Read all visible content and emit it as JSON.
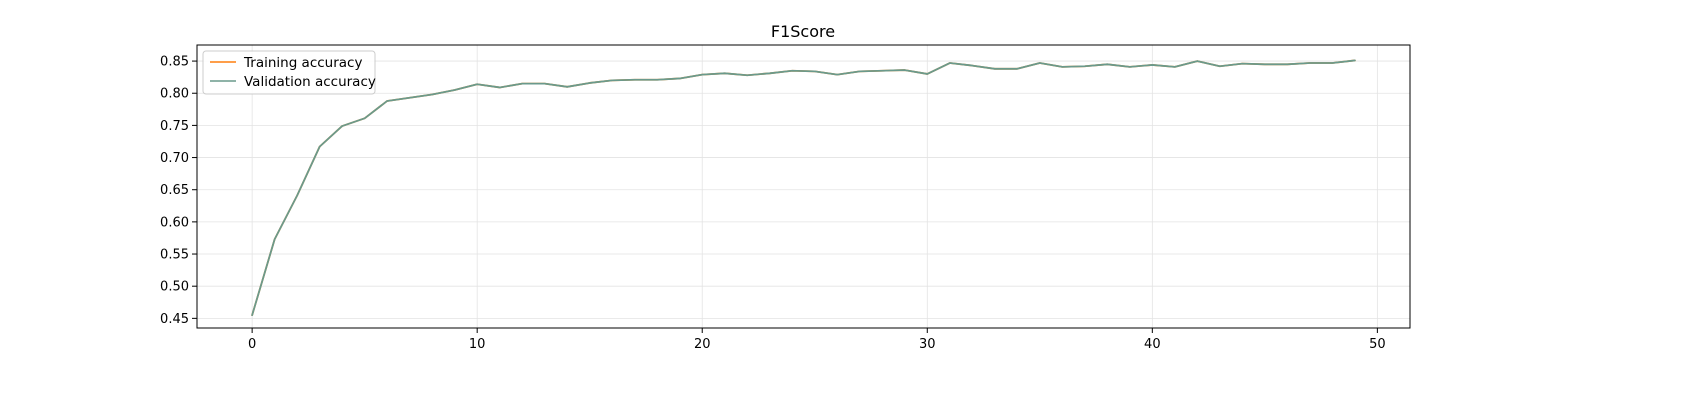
{
  "chart_data": {
    "type": "line",
    "title": "F1Score",
    "xlabel": "",
    "ylabel": "",
    "xlim": [
      -2.45,
      51.45
    ],
    "ylim": [
      0.435,
      0.875
    ],
    "xticks": [
      0,
      10,
      20,
      30,
      40,
      50
    ],
    "yticks": [
      0.45,
      0.5,
      0.55,
      0.6,
      0.65,
      0.7,
      0.75,
      0.8,
      0.85
    ],
    "ytick_labels": [
      "0.45",
      "0.50",
      "0.55",
      "0.60",
      "0.65",
      "0.70",
      "0.75",
      "0.80",
      "0.85"
    ],
    "grid": true,
    "legend_position": "top-left",
    "x": [
      0,
      1,
      2,
      3,
      4,
      5,
      6,
      7,
      8,
      9,
      10,
      11,
      12,
      13,
      14,
      15,
      16,
      17,
      18,
      19,
      20,
      21,
      22,
      23,
      24,
      25,
      26,
      27,
      28,
      29,
      30,
      31,
      32,
      33,
      34,
      35,
      36,
      37,
      38,
      39,
      40,
      41,
      42,
      43,
      44,
      45,
      46,
      47,
      48,
      49
    ],
    "series": [
      {
        "name": "Training accuracy",
        "color": "#ff7f0e",
        "values": [
          0.455,
          0.573,
          0.641,
          0.717,
          0.749,
          0.761,
          0.788,
          0.793,
          0.798,
          0.805,
          0.814,
          0.809,
          0.815,
          0.815,
          0.81,
          0.816,
          0.82,
          0.821,
          0.821,
          0.823,
          0.829,
          0.831,
          0.828,
          0.831,
          0.835,
          0.834,
          0.829,
          0.834,
          0.835,
          0.836,
          0.83,
          0.847,
          0.843,
          0.838,
          0.838,
          0.847,
          0.841,
          0.842,
          0.845,
          0.841,
          0.844,
          0.841,
          0.85,
          0.842,
          0.846,
          0.845,
          0.845,
          0.847,
          0.847,
          0.851
        ]
      },
      {
        "name": "Validation accuracy",
        "color": "#6a9a8c",
        "values": [
          0.455,
          0.573,
          0.641,
          0.717,
          0.749,
          0.761,
          0.788,
          0.793,
          0.798,
          0.805,
          0.814,
          0.809,
          0.815,
          0.815,
          0.81,
          0.816,
          0.82,
          0.821,
          0.821,
          0.823,
          0.829,
          0.831,
          0.828,
          0.831,
          0.835,
          0.834,
          0.829,
          0.834,
          0.835,
          0.836,
          0.83,
          0.847,
          0.843,
          0.838,
          0.838,
          0.847,
          0.841,
          0.842,
          0.845,
          0.841,
          0.844,
          0.841,
          0.85,
          0.842,
          0.846,
          0.845,
          0.845,
          0.847,
          0.847,
          0.851
        ]
      }
    ]
  }
}
